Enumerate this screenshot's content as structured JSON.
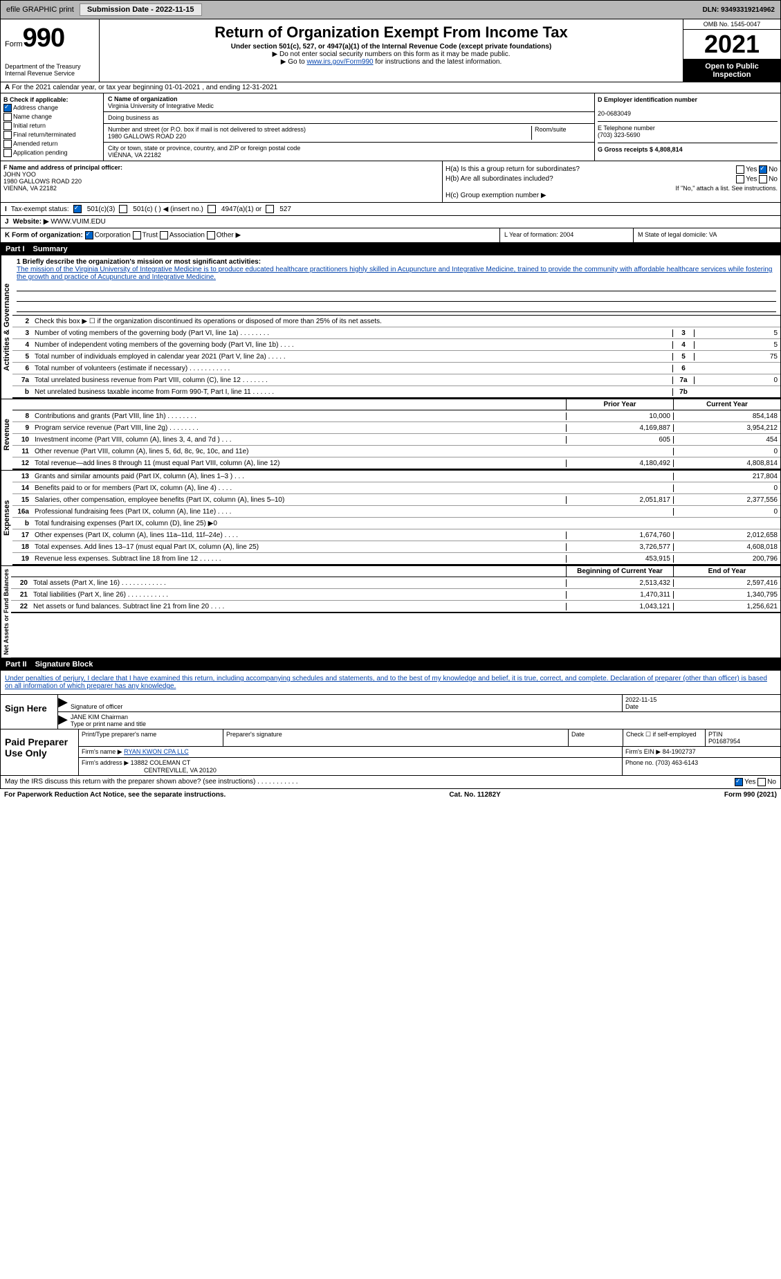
{
  "topbar": {
    "efile": "efile GRAPHIC print",
    "submission_label": "Submission Date - 2022-11-15",
    "dln_label": "DLN: 93493319214962"
  },
  "header": {
    "form_prefix": "Form",
    "form_num": "990",
    "title": "Return of Organization Exempt From Income Tax",
    "subtitle": "Under section 501(c), 527, or 4947(a)(1) of the Internal Revenue Code (except private foundations)",
    "note1": "▶ Do not enter social security numbers on this form as it may be made public.",
    "note2_pre": "▶ Go to ",
    "note2_link": "www.irs.gov/Form990",
    "note2_post": " for instructions and the latest information.",
    "omb": "OMB No. 1545-0047",
    "year": "2021",
    "open": "Open to Public Inspection",
    "dept": "Department of the Treasury",
    "irs": "Internal Revenue Service"
  },
  "lineA": {
    "text": "For the 2021 calendar year, or tax year beginning 01-01-2021    , and ending 12-31-2021",
    "prefix": "A"
  },
  "boxB": {
    "title": "B Check if applicable:",
    "items": [
      "Address change",
      "Name change",
      "Initial return",
      "Final return/terminated",
      "Amended return",
      "Application pending"
    ],
    "checked": [
      true,
      false,
      false,
      false,
      false,
      false
    ]
  },
  "boxC": {
    "name_label": "C Name of organization",
    "name": "Virginia University of Integrative Medic",
    "dba_label": "Doing business as",
    "dba": "",
    "street_label": "Number and street (or P.O. box if mail is not delivered to street address)",
    "room_label": "Room/suite",
    "street": "1980 GALLOWS ROAD 220",
    "city_label": "City or town, state or province, country, and ZIP or foreign postal code",
    "city": "VIENNA, VA  22182"
  },
  "boxD": {
    "ein_label": "D Employer identification number",
    "ein": "20-0683049",
    "phone_label": "E Telephone number",
    "phone": "(703) 323-5690",
    "gross_label": "G Gross receipts $ 4,808,814"
  },
  "boxF": {
    "label": "F  Name and address of principal officer:",
    "name": "JOHN YOO",
    "addr1": "1980 GALLOWS ROAD 220",
    "addr2": "VIENNA, VA  22182"
  },
  "boxH": {
    "a": "H(a)  Is this a group return for subordinates?",
    "a_yes": "Yes",
    "a_no": "No",
    "b": "H(b)  Are all subordinates included?",
    "b_yes": "Yes",
    "b_no": "No",
    "b_note": "If \"No,\" attach a list. See instructions.",
    "c": "H(c)  Group exemption number ▶"
  },
  "boxI": {
    "label": "Tax-exempt status:",
    "opts": [
      "501(c)(3)",
      "501(c) (  ) ◀ (insert no.)",
      "4947(a)(1) or",
      "527"
    ],
    "checked": [
      true,
      false,
      false,
      false
    ]
  },
  "boxJ": {
    "label": "Website: ▶",
    "value": "WWW.VUIM.EDU"
  },
  "boxK": {
    "label": "K Form of organization:",
    "opts": [
      "Corporation",
      "Trust",
      "Association",
      "Other ▶"
    ],
    "checked": [
      true,
      false,
      false,
      false
    ]
  },
  "boxL": {
    "label": "L Year of formation: 2004"
  },
  "boxM": {
    "label": "M State of legal domicile: VA"
  },
  "part1": {
    "num": "Part I",
    "title": "Summary"
  },
  "mission": {
    "label": "1  Briefly describe the organization's mission or most significant activities:",
    "text": "The mission of the Virginia University of Integrative Medicine is to produce educated healthcare practitioners highly skilled in Acupuncture and Integrative Medicine, trained to provide the community with affordable healthcare services while fostering the growth and practice of Acupuncture and Integrative Medicine."
  },
  "gov_lines": [
    {
      "n": "2",
      "t": "Check this box ▶ ☐  if the organization discontinued its operations or disposed of more than 25% of its net assets.",
      "box": "",
      "v": ""
    },
    {
      "n": "3",
      "t": "Number of voting members of the governing body (Part VI, line 1a)  .    .    .    .    .    .    .    .",
      "box": "3",
      "v": "5"
    },
    {
      "n": "4",
      "t": "Number of independent voting members of the governing body (Part VI, line 1b)  .    .    .    .",
      "box": "4",
      "v": "5"
    },
    {
      "n": "5",
      "t": "Total number of individuals employed in calendar year 2021 (Part V, line 2a)  .    .    .    .    .",
      "box": "5",
      "v": "75"
    },
    {
      "n": "6",
      "t": "Total number of volunteers (estimate if necessary)   .    .    .    .    .    .    .    .    .    .    .",
      "box": "6",
      "v": ""
    },
    {
      "n": "7a",
      "t": "Total unrelated business revenue from Part VIII, column (C), line 12  .    .    .    .    .    .    .",
      "box": "7a",
      "v": "0"
    },
    {
      "n": "b",
      "t": "Net unrelated business taxable income from Form 990-T, Part I, line 11  .    .    .    .    .    .",
      "box": "7b",
      "v": ""
    }
  ],
  "yearhdr": {
    "prior": "Prior Year",
    "current": "Current Year"
  },
  "revenue": [
    {
      "n": "8",
      "t": "Contributions and grants (Part VIII, line 1h)  .    .    .    .    .    .    .    .",
      "v1": "10,000",
      "v2": "854,148"
    },
    {
      "n": "9",
      "t": "Program service revenue (Part VIII, line 2g)  .    .    .    .    .    .    .    .",
      "v1": "4,169,887",
      "v2": "3,954,212"
    },
    {
      "n": "10",
      "t": "Investment income (Part VIII, column (A), lines 3, 4, and 7d )  .    .    .",
      "v1": "605",
      "v2": "454"
    },
    {
      "n": "11",
      "t": "Other revenue (Part VIII, column (A), lines 5, 6d, 8c, 9c, 10c, and 11e)",
      "v1": "",
      "v2": "0"
    },
    {
      "n": "12",
      "t": "Total revenue—add lines 8 through 11 (must equal Part VIII, column (A), line 12)",
      "v1": "4,180,492",
      "v2": "4,808,814"
    }
  ],
  "expenses": [
    {
      "n": "13",
      "t": "Grants and similar amounts paid (Part IX, column (A), lines 1–3 )  .    .    .",
      "v1": "",
      "v2": "217,804"
    },
    {
      "n": "14",
      "t": "Benefits paid to or for members (Part IX, column (A), line 4)  .    .    .    .",
      "v1": "",
      "v2": "0"
    },
    {
      "n": "15",
      "t": "Salaries, other compensation, employee benefits (Part IX, column (A), lines 5–10)",
      "v1": "2,051,817",
      "v2": "2,377,556"
    },
    {
      "n": "16a",
      "t": "Professional fundraising fees (Part IX, column (A), line 11e)  .    .    .    .",
      "v1": "",
      "v2": "0"
    },
    {
      "n": "b",
      "t": "Total fundraising expenses (Part IX, column (D), line 25) ▶0",
      "v1": "",
      "v2": ""
    },
    {
      "n": "17",
      "t": "Other expenses (Part IX, column (A), lines 11a–11d, 11f–24e)  .    .    .    .",
      "v1": "1,674,760",
      "v2": "2,012,658"
    },
    {
      "n": "18",
      "t": "Total expenses. Add lines 13–17 (must equal Part IX, column (A), line 25)",
      "v1": "3,726,577",
      "v2": "4,608,018"
    },
    {
      "n": "19",
      "t": "Revenue less expenses. Subtract line 18 from line 12  .    .    .    .    .    .",
      "v1": "453,915",
      "v2": "200,796"
    }
  ],
  "nethdr": {
    "begin": "Beginning of Current Year",
    "end": "End of Year"
  },
  "netassets": [
    {
      "n": "20",
      "t": "Total assets (Part X, line 16)  .    .    .    .    .    .    .    .    .    .    .    .",
      "v1": "2,513,432",
      "v2": "2,597,416"
    },
    {
      "n": "21",
      "t": "Total liabilities (Part X, line 26)  .    .    .    .    .    .    .    .    .    .    .",
      "v1": "1,470,311",
      "v2": "1,340,795"
    },
    {
      "n": "22",
      "t": "Net assets or fund balances. Subtract line 21 from line 20  .    .    .    .",
      "v1": "1,043,121",
      "v2": "1,256,621"
    }
  ],
  "part2": {
    "num": "Part II",
    "title": "Signature Block"
  },
  "penalty": "Under penalties of perjury, I declare that I have examined this return, including accompanying schedules and statements, and to the best of my knowledge and belief, it is true, correct, and complete. Declaration of preparer (other than officer) is based on all information of which preparer has any knowledge.",
  "sign": {
    "label": "Sign Here",
    "sig_label": "Signature of officer",
    "date": "2022-11-15",
    "date_label": "Date",
    "name": "JANE KIM  Chairman",
    "name_label": "Type or print name and title"
  },
  "prep": {
    "label": "Paid Preparer Use Only",
    "h1": "Print/Type preparer's name",
    "h2": "Preparer's signature",
    "h3": "Date",
    "h4": "Check ☐ if self-employed",
    "h5": "PTIN",
    "ptin": "P01687954",
    "firm_label": "Firm's name   ▶",
    "firm": "RYAN KWON CPA LLC",
    "ein_label": "Firm's EIN ▶ 84-1902737",
    "addr_label": "Firm's address ▶",
    "addr1": "13882 COLEMAN CT",
    "addr2": "CENTREVILLE, VA  20120",
    "phone_label": "Phone no. (703) 463-6143"
  },
  "may": {
    "text": "May the IRS discuss this return with the preparer shown above? (see instructions)  .    .    .    .    .    .    .    .    .    .    .",
    "yes": "Yes",
    "no": "No"
  },
  "footer": {
    "left": "For Paperwork Reduction Act Notice, see the separate instructions.",
    "mid": "Cat. No. 11282Y",
    "right": "Form 990 (2021)"
  },
  "vtabs": {
    "gov": "Activities & Governance",
    "rev": "Revenue",
    "exp": "Expenses",
    "net": "Net Assets or Fund Balances"
  }
}
